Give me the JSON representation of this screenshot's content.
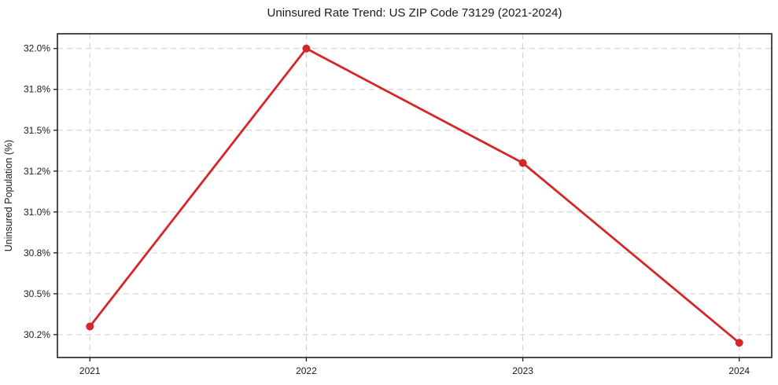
{
  "chart_data": {
    "type": "line",
    "title": "Uninsured Rate Trend: US ZIP Code 73129 (2021-2024)",
    "xlabel": "",
    "ylabel": "Uninsured Population (%)",
    "x": [
      2021,
      2022,
      2023,
      2024
    ],
    "x_tick_labels": [
      "2021",
      "2022",
      "2023",
      "2024"
    ],
    "values": [
      30.3,
      32.0,
      31.3,
      30.2
    ],
    "y_ticks": [
      {
        "value": 30.25,
        "label": "30.2%"
      },
      {
        "value": 30.5,
        "label": "30.5%"
      },
      {
        "value": 30.75,
        "label": "30.8%"
      },
      {
        "value": 31.0,
        "label": "31.0%"
      },
      {
        "value": 31.25,
        "label": "31.2%"
      },
      {
        "value": 31.5,
        "label": "31.5%"
      },
      {
        "value": 31.75,
        "label": "31.8%"
      },
      {
        "value": 32.0,
        "label": "32.0%"
      }
    ],
    "xlim": [
      2020.85,
      2024.15
    ],
    "ylim": [
      30.11,
      32.09
    ],
    "grid": true,
    "grid_style": "dashed",
    "legend": "none",
    "colors": {
      "line": "#d62728",
      "marker": "#d62728",
      "grid": "#cccccc",
      "spine": "#1f1f1f",
      "text": "#1a1a1a",
      "background": "#ffffff"
    }
  }
}
